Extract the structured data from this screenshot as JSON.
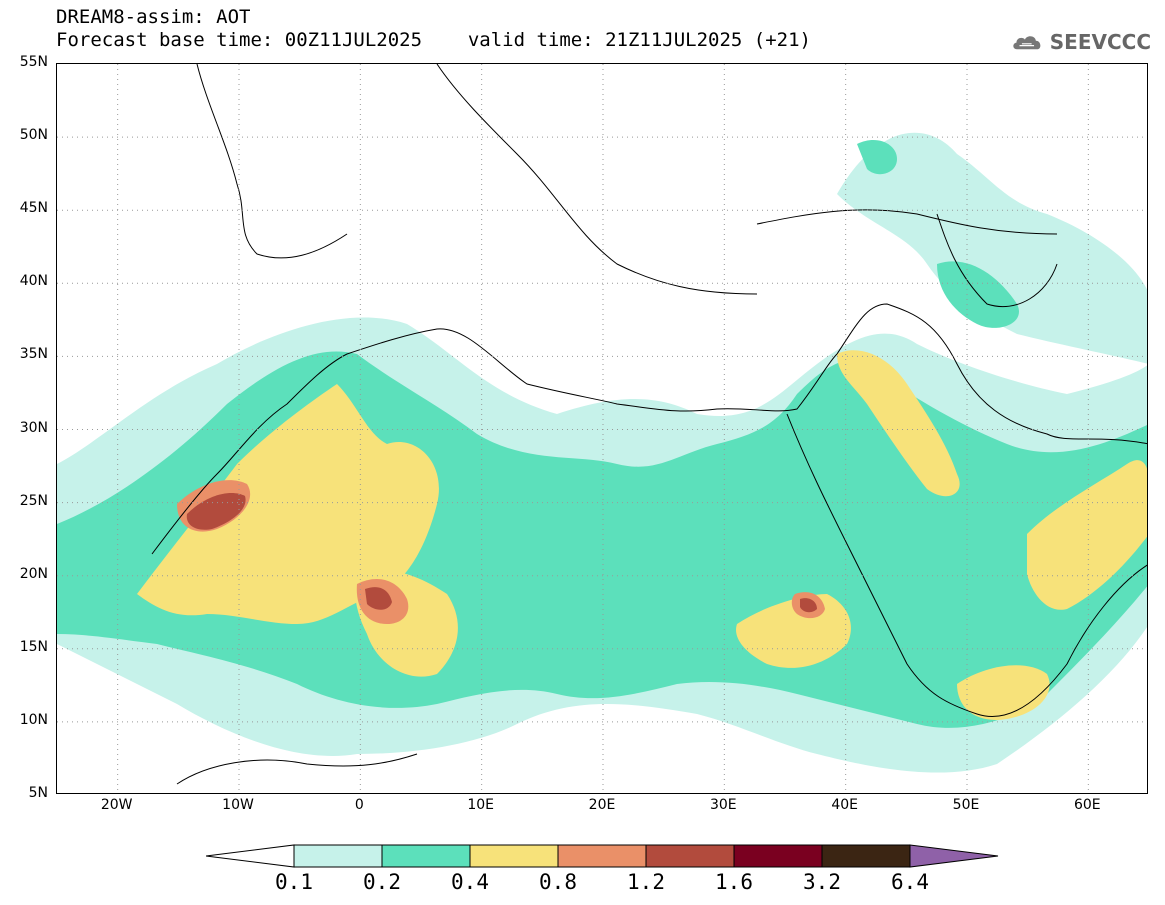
{
  "title": {
    "line1": "DREAM8-assim: AOT",
    "line2_base": "Forecast base time: 00Z11JUL2025",
    "line2_valid": "valid time: 21Z11JUL2025 (+21)"
  },
  "logo": {
    "text": "SEEVCCC",
    "icon": "cloud-icon"
  },
  "map": {
    "lon_range": [
      -25,
      65
    ],
    "lat_range": [
      5,
      55
    ],
    "lat_ticks": [
      "55N",
      "50N",
      "45N",
      "40N",
      "35N",
      "30N",
      "25N",
      "20N",
      "15N",
      "10N",
      "5N"
    ],
    "lon_ticks": [
      "20W",
      "10W",
      "0",
      "10E",
      "20E",
      "30E",
      "40E",
      "50E",
      "60E"
    ],
    "grid": "dotted"
  },
  "colorbar": {
    "labels": [
      "0.1",
      "0.2",
      "0.4",
      "0.8",
      "1.2",
      "1.6",
      "3.2",
      "6.4"
    ],
    "colors": [
      "#c6f2ea",
      "#5ce0bb",
      "#f7e27a",
      "#ea9068",
      "#b24b3d",
      "#7a0020",
      "#3b2513",
      "#8f61a8"
    ]
  }
}
